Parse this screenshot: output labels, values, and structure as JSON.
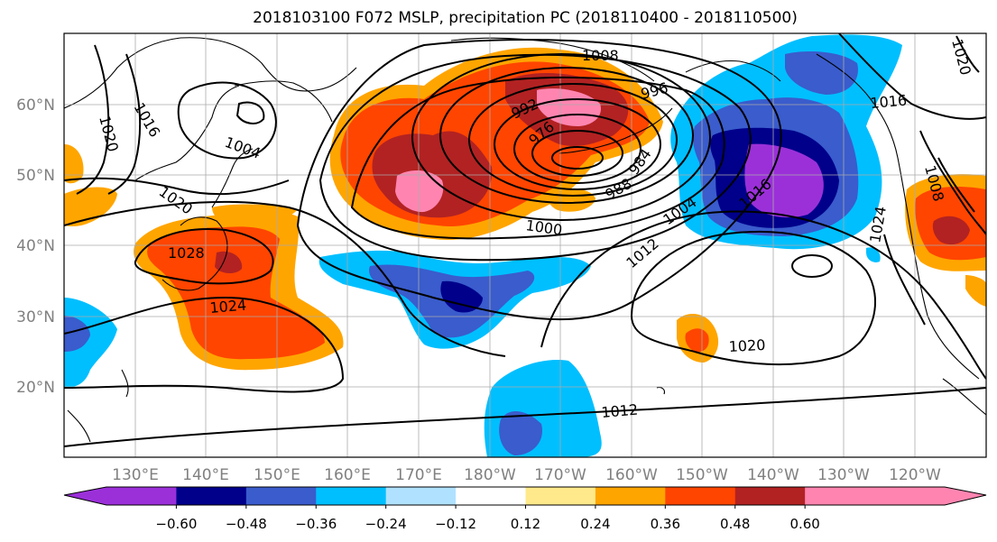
{
  "title": "2018103100 F072 MSLP, precipitation PC (2018110400 - 2018110500)",
  "lat_labels": [
    "60°N",
    "50°N",
    "40°N",
    "30°N",
    "20°N"
  ],
  "lon_labels": [
    "130°E",
    "140°E",
    "150°E",
    "160°E",
    "170°E",
    "180°W",
    "170°W",
    "160°W",
    "150°W",
    "140°W",
    "130°W",
    "120°W"
  ],
  "contour_labels": [
    "1008",
    "996",
    "992",
    "976",
    "984",
    "988",
    "1000",
    "1004",
    "1012",
    "1016",
    "1016",
    "1004",
    "1020",
    "1024",
    "1028",
    "1020",
    "1016",
    "1020",
    "1012",
    "1008",
    "1020",
    "1024"
  ],
  "colorbar": {
    "tick_labels": [
      "−0.60",
      "−0.48",
      "−0.36",
      "−0.24",
      "−0.12",
      "0.12",
      "0.24",
      "0.36",
      "0.48",
      "0.60"
    ],
    "colors": [
      "#9b30d9",
      "#00008b",
      "#3a5ccc",
      "#00bfff",
      "#b0e2ff",
      "#ffffff",
      "#ffe98a",
      "#ffa500",
      "#ff4500",
      "#b22222",
      "#ff85b0",
      "#ff85b0"
    ]
  }
}
